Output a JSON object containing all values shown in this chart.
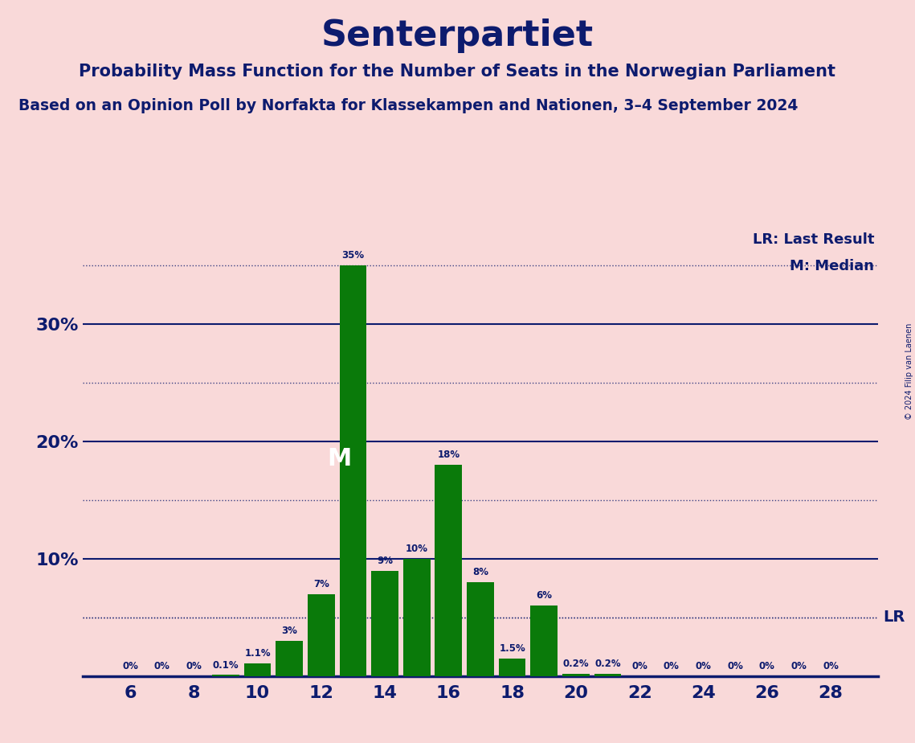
{
  "title": "Senterpartiet",
  "subtitle1": "Probability Mass Function for the Number of Seats in the Norwegian Parliament",
  "subtitle2": "Based on an Opinion Poll by Norfakta for Klassekampen and Nationen, 3–4 September 2024",
  "copyright": "© 2024 Filip van Laenen",
  "seats": [
    6,
    7,
    8,
    9,
    10,
    11,
    12,
    13,
    14,
    15,
    16,
    17,
    18,
    19,
    20,
    21,
    22,
    23,
    24,
    25,
    26,
    27,
    28
  ],
  "probabilities": [
    0.0,
    0.0,
    0.0,
    0.1,
    1.1,
    3.0,
    7.0,
    35.0,
    9.0,
    10.0,
    18.0,
    8.0,
    1.5,
    6.0,
    0.2,
    0.2,
    0.0,
    0.0,
    0.0,
    0.0,
    0.0,
    0.0,
    0.0
  ],
  "bar_labels": [
    "0%",
    "0%",
    "0%",
    "0.1%",
    "1.1%",
    "3%",
    "7%",
    "35%",
    "9%",
    "10%",
    "18%",
    "8%",
    "1.5%",
    "6%",
    "0.2%",
    "0.2%",
    "0%",
    "0%",
    "0%",
    "0%",
    "0%",
    "0%",
    "0%"
  ],
  "bar_color": "#0a7a0a",
  "background_color": "#f9d9d9",
  "text_color": "#0d1b6e",
  "median_seat": 13,
  "last_result_pct": 5.0,
  "last_result_label": "LR",
  "median_label": "M",
  "legend_lr": "LR: Last Result",
  "legend_m": "M: Median",
  "xtick_positions": [
    6,
    8,
    10,
    12,
    14,
    16,
    18,
    20,
    22,
    24,
    26,
    28
  ],
  "ylim": [
    0,
    38
  ],
  "solid_lines": [
    10,
    20,
    30
  ],
  "dotted_lines": [
    5,
    15,
    25,
    35
  ],
  "ytick_labels": [
    10,
    20,
    30
  ]
}
